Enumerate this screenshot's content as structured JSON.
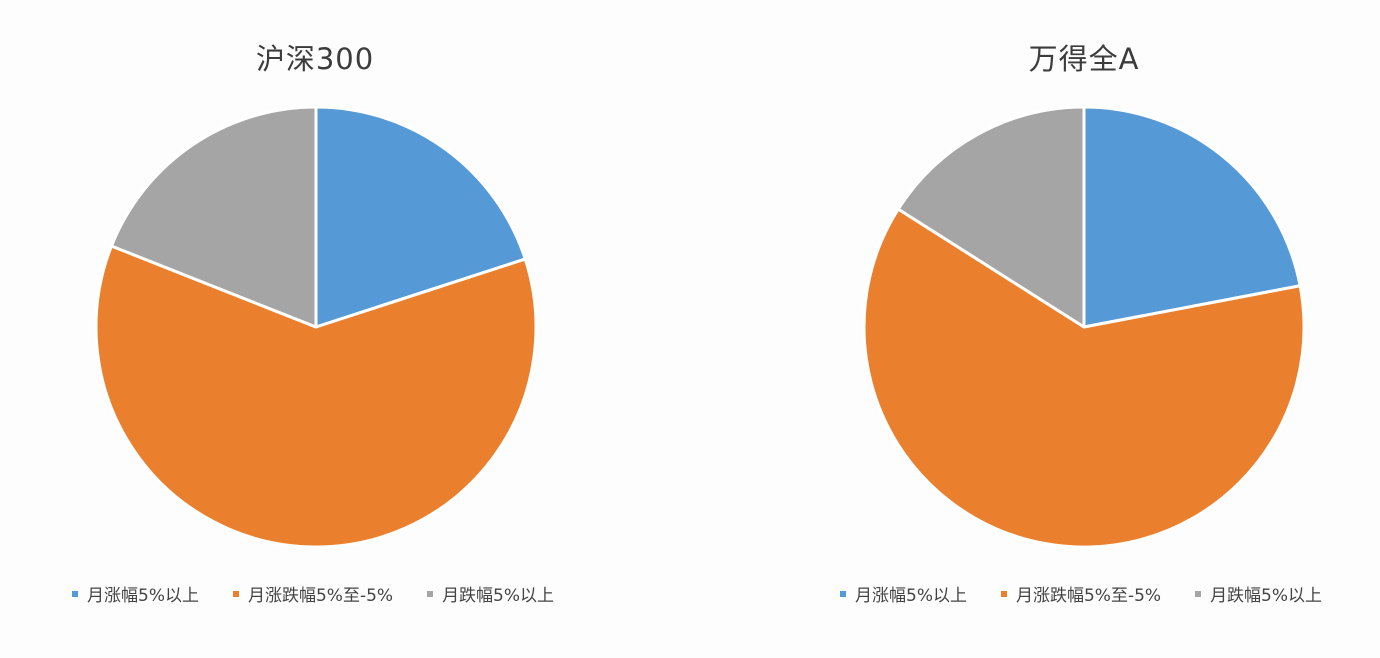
{
  "chart_data": [
    {
      "type": "pie",
      "title": "沪深300",
      "categories": [
        "月涨幅5%以上",
        "月涨跌幅5%至-5%",
        "月跌幅5%以上"
      ],
      "values": [
        20,
        61,
        19
      ],
      "colors": [
        "#5599d6",
        "#ea7f2e",
        "#a5a5a5"
      ],
      "legend_position": "bottom"
    },
    {
      "type": "pie",
      "title": "万得全A",
      "categories": [
        "月涨幅5%以上",
        "月涨跌幅5%至-5%",
        "月跌幅5%以上"
      ],
      "values": [
        22,
        62,
        16
      ],
      "colors": [
        "#5599d6",
        "#ea7f2e",
        "#a5a5a5"
      ],
      "legend_position": "bottom"
    }
  ]
}
